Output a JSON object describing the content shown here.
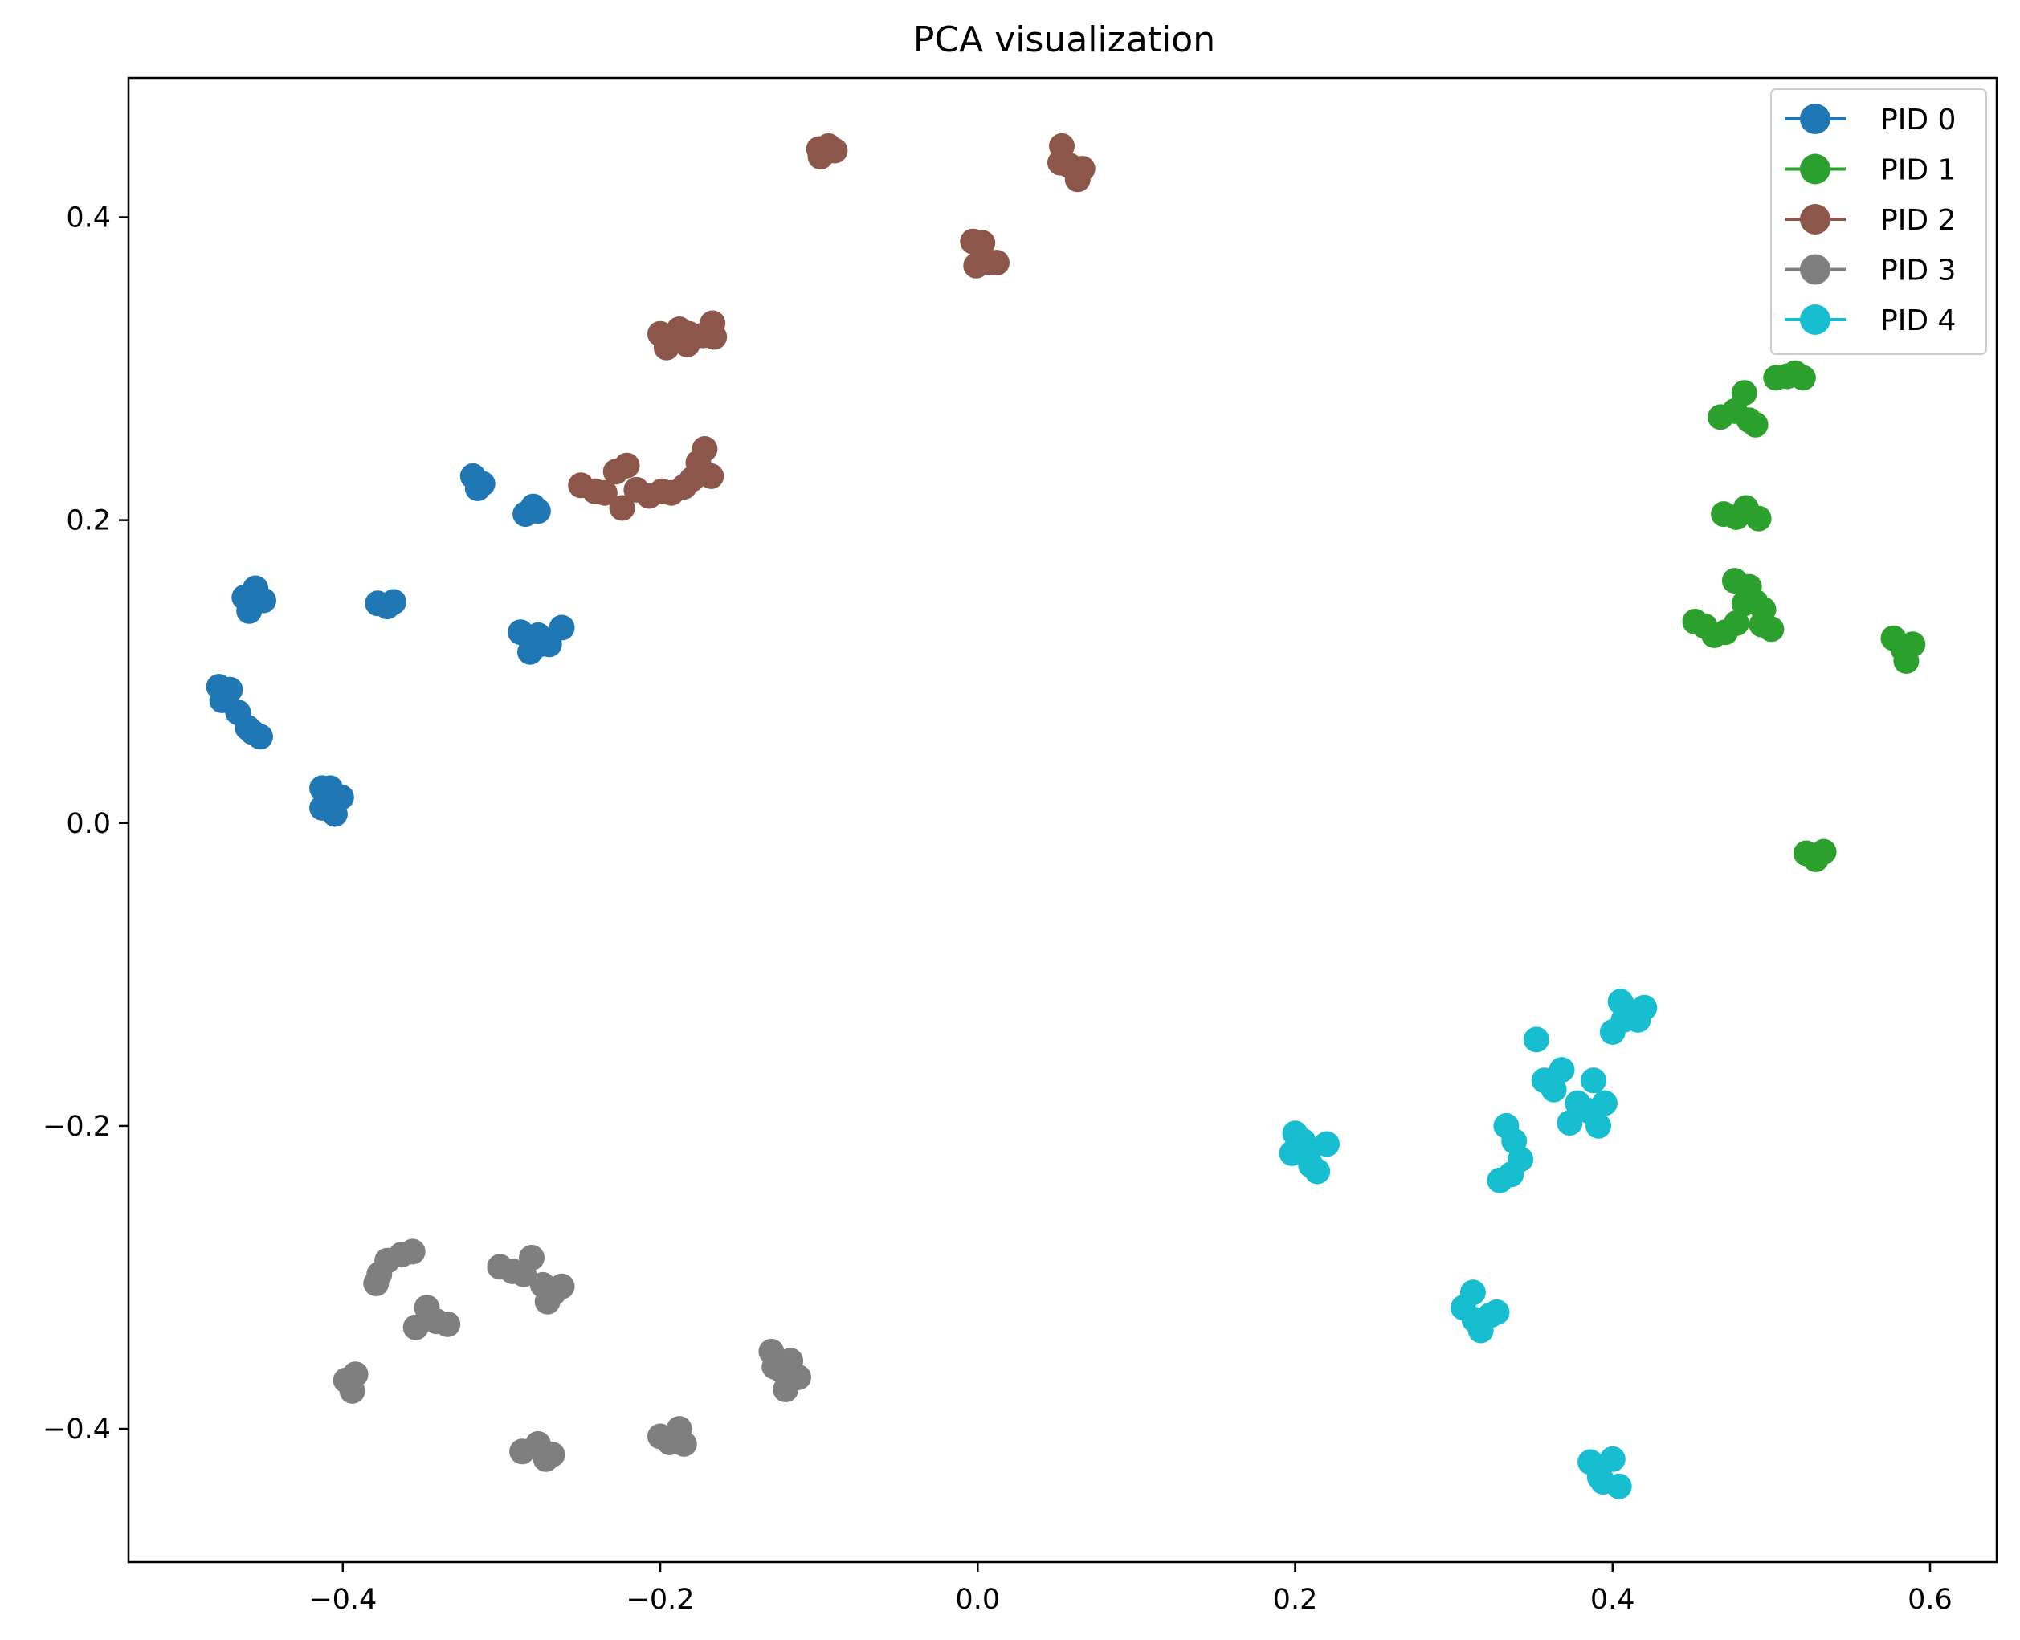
{
  "chart_data": {
    "type": "scatter",
    "title": "PCA visualization",
    "xlabel": "",
    "ylabel": "",
    "xlim": [
      -0.535,
      0.642
    ],
    "ylim": [
      -0.488,
      0.492
    ],
    "xticks": [
      -0.4,
      -0.2,
      0.0,
      0.2,
      0.4,
      0.6
    ],
    "xtick_labels": [
      "−0.4",
      "−0.2",
      "0.0",
      "0.2",
      "0.4",
      "0.6"
    ],
    "yticks": [
      -0.4,
      -0.2,
      0.0,
      0.2,
      0.4
    ],
    "ytick_labels": [
      "−0.4",
      "−0.2",
      "0.0",
      "0.2",
      "0.4"
    ],
    "grid": false,
    "legend_position": "top-right",
    "series": [
      {
        "name": "PID 0",
        "color": "#1f77b4",
        "points": [
          [
            -0.318,
            0.229
          ],
          [
            -0.312,
            0.224
          ],
          [
            -0.315,
            0.221
          ],
          [
            -0.285,
            0.204
          ],
          [
            -0.28,
            0.209
          ],
          [
            -0.277,
            0.206
          ],
          [
            -0.462,
            0.149
          ],
          [
            -0.455,
            0.155
          ],
          [
            -0.459,
            0.14
          ],
          [
            -0.45,
            0.147
          ],
          [
            -0.378,
            0.145
          ],
          [
            -0.372,
            0.143
          ],
          [
            -0.368,
            0.146
          ],
          [
            -0.288,
            0.126
          ],
          [
            -0.282,
            0.113
          ],
          [
            -0.277,
            0.124
          ],
          [
            -0.27,
            0.118
          ],
          [
            -0.262,
            0.129
          ],
          [
            -0.276,
            0.118
          ],
          [
            -0.478,
            0.09
          ],
          [
            -0.471,
            0.088
          ],
          [
            -0.476,
            0.081
          ],
          [
            -0.466,
            0.073
          ],
          [
            -0.46,
            0.063
          ],
          [
            -0.452,
            0.057
          ],
          [
            -0.457,
            0.06
          ],
          [
            -0.413,
            0.023
          ],
          [
            -0.408,
            0.013
          ],
          [
            -0.405,
            0.006
          ],
          [
            -0.413,
            0.01
          ],
          [
            -0.401,
            0.017
          ],
          [
            -0.408,
            0.023
          ]
        ]
      },
      {
        "name": "PID 1",
        "color": "#2ca02c",
        "points": [
          [
            0.503,
            0.294
          ],
          [
            0.51,
            0.295
          ],
          [
            0.515,
            0.297
          ],
          [
            0.52,
            0.294
          ],
          [
            0.468,
            0.268
          ],
          [
            0.477,
            0.272
          ],
          [
            0.483,
            0.284
          ],
          [
            0.486,
            0.266
          ],
          [
            0.49,
            0.263
          ],
          [
            0.47,
            0.204
          ],
          [
            0.478,
            0.202
          ],
          [
            0.484,
            0.208
          ],
          [
            0.492,
            0.201
          ],
          [
            0.477,
            0.16
          ],
          [
            0.486,
            0.156
          ],
          [
            0.483,
            0.145
          ],
          [
            0.49,
            0.146
          ],
          [
            0.494,
            0.131
          ],
          [
            0.5,
            0.128
          ],
          [
            0.495,
            0.141
          ],
          [
            0.478,
            0.132
          ],
          [
            0.452,
            0.133
          ],
          [
            0.458,
            0.13
          ],
          [
            0.464,
            0.124
          ],
          [
            0.471,
            0.126
          ],
          [
            0.577,
            0.122
          ],
          [
            0.583,
            0.115
          ],
          [
            0.585,
            0.107
          ],
          [
            0.589,
            0.118
          ],
          [
            0.522,
            -0.02
          ],
          [
            0.528,
            -0.024
          ],
          [
            0.533,
            -0.019
          ]
        ]
      },
      {
        "name": "PID 2",
        "color": "#8c564b",
        "points": [
          [
            -0.1,
            0.445
          ],
          [
            -0.094,
            0.447
          ],
          [
            -0.099,
            0.44
          ],
          [
            -0.09,
            0.444
          ],
          [
            0.053,
            0.447
          ],
          [
            0.052,
            0.436
          ],
          [
            0.058,
            0.434
          ],
          [
            0.063,
            0.425
          ],
          [
            0.066,
            0.432
          ],
          [
            -0.003,
            0.384
          ],
          [
            0.003,
            0.383
          ],
          [
            0.007,
            0.37
          ],
          [
            0.012,
            0.37
          ],
          [
            -0.001,
            0.368
          ],
          [
            -0.2,
            0.323
          ],
          [
            -0.196,
            0.314
          ],
          [
            -0.188,
            0.326
          ],
          [
            -0.182,
            0.323
          ],
          [
            -0.183,
            0.316
          ],
          [
            -0.173,
            0.322
          ],
          [
            -0.167,
            0.33
          ],
          [
            -0.166,
            0.321
          ],
          [
            -0.25,
            0.223
          ],
          [
            -0.241,
            0.219
          ],
          [
            -0.235,
            0.218
          ],
          [
            -0.228,
            0.232
          ],
          [
            -0.224,
            0.208
          ],
          [
            -0.221,
            0.236
          ],
          [
            -0.215,
            0.22
          ],
          [
            -0.207,
            0.216
          ],
          [
            -0.199,
            0.219
          ],
          [
            -0.193,
            0.218
          ],
          [
            -0.185,
            0.222
          ],
          [
            -0.18,
            0.227
          ],
          [
            -0.176,
            0.238
          ],
          [
            -0.172,
            0.247
          ],
          [
            -0.168,
            0.229
          ]
        ]
      },
      {
        "name": "PID 3",
        "color": "#7f7f7f",
        "points": [
          [
            -0.377,
            -0.298
          ],
          [
            -0.372,
            -0.289
          ],
          [
            -0.363,
            -0.285
          ],
          [
            -0.356,
            -0.283
          ],
          [
            -0.379,
            -0.304
          ],
          [
            -0.301,
            -0.293
          ],
          [
            -0.293,
            -0.296
          ],
          [
            -0.286,
            -0.298
          ],
          [
            -0.281,
            -0.287
          ],
          [
            -0.274,
            -0.305
          ],
          [
            -0.267,
            -0.31
          ],
          [
            -0.262,
            -0.306
          ],
          [
            -0.271,
            -0.316
          ],
          [
            -0.354,
            -0.333
          ],
          [
            -0.347,
            -0.32
          ],
          [
            -0.341,
            -0.329
          ],
          [
            -0.334,
            -0.331
          ],
          [
            -0.398,
            -0.368
          ],
          [
            -0.394,
            -0.375
          ],
          [
            -0.392,
            -0.364
          ],
          [
            -0.13,
            -0.349
          ],
          [
            -0.124,
            -0.361
          ],
          [
            -0.118,
            -0.355
          ],
          [
            -0.113,
            -0.366
          ],
          [
            -0.121,
            -0.374
          ],
          [
            -0.128,
            -0.359
          ],
          [
            -0.2,
            -0.405
          ],
          [
            -0.194,
            -0.409
          ],
          [
            -0.188,
            -0.4
          ],
          [
            -0.185,
            -0.41
          ],
          [
            -0.287,
            -0.415
          ],
          [
            -0.277,
            -0.41
          ],
          [
            -0.272,
            -0.42
          ],
          [
            -0.268,
            -0.417
          ]
        ]
      },
      {
        "name": "PID 4",
        "color": "#17becf",
        "points": [
          [
            0.198,
            -0.218
          ],
          [
            0.205,
            -0.21
          ],
          [
            0.21,
            -0.226
          ],
          [
            0.214,
            -0.23
          ],
          [
            0.22,
            -0.212
          ],
          [
            0.2,
            -0.205
          ],
          [
            0.208,
            -0.219
          ],
          [
            0.405,
            -0.118
          ],
          [
            0.41,
            -0.124
          ],
          [
            0.416,
            -0.13
          ],
          [
            0.42,
            -0.122
          ],
          [
            0.4,
            -0.138
          ],
          [
            0.407,
            -0.13
          ],
          [
            0.352,
            -0.143
          ],
          [
            0.357,
            -0.17
          ],
          [
            0.363,
            -0.176
          ],
          [
            0.368,
            -0.163
          ],
          [
            0.373,
            -0.198
          ],
          [
            0.378,
            -0.185
          ],
          [
            0.385,
            -0.19
          ],
          [
            0.388,
            -0.17
          ],
          [
            0.391,
            -0.2
          ],
          [
            0.395,
            -0.185
          ],
          [
            0.333,
            -0.2
          ],
          [
            0.338,
            -0.21
          ],
          [
            0.342,
            -0.222
          ],
          [
            0.336,
            -0.232
          ],
          [
            0.329,
            -0.236
          ],
          [
            0.306,
            -0.32
          ],
          [
            0.312,
            -0.31
          ],
          [
            0.317,
            -0.335
          ],
          [
            0.323,
            -0.325
          ],
          [
            0.327,
            -0.323
          ],
          [
            0.313,
            -0.328
          ],
          [
            0.386,
            -0.422
          ],
          [
            0.394,
            -0.435
          ],
          [
            0.4,
            -0.42
          ],
          [
            0.404,
            -0.438
          ],
          [
            0.392,
            -0.432
          ]
        ]
      }
    ]
  }
}
